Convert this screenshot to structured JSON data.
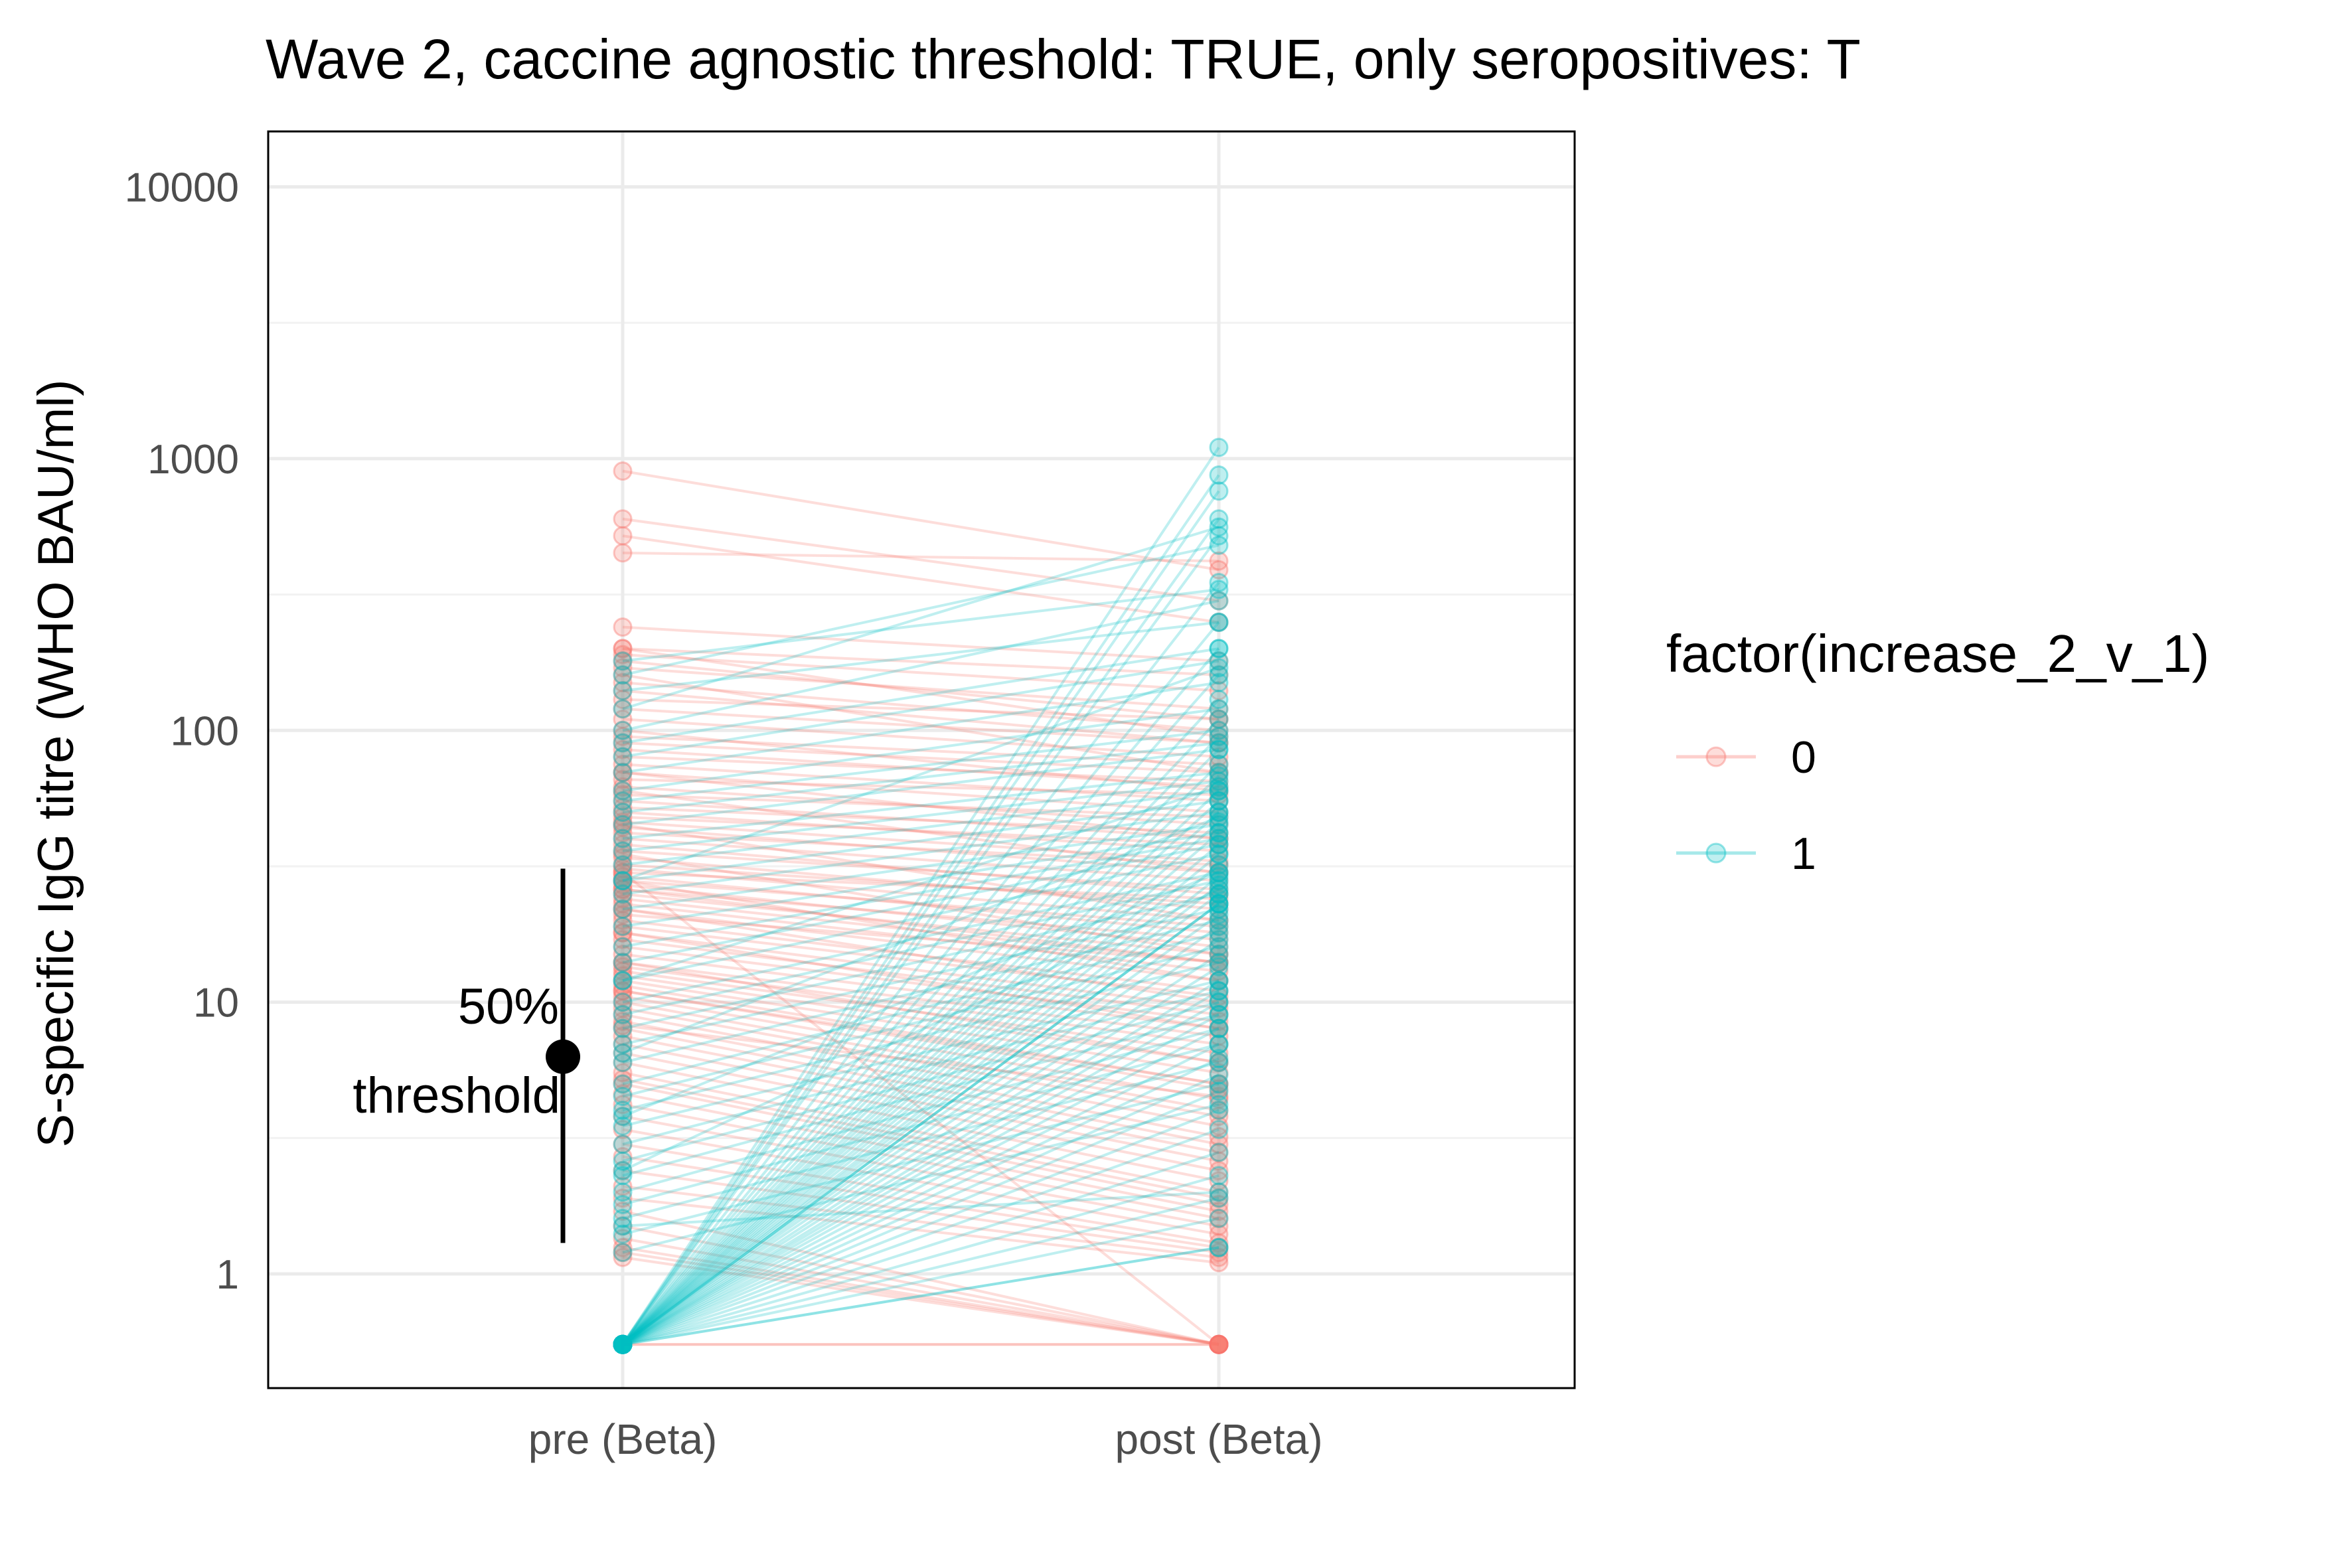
{
  "chart_data": {
    "type": "line",
    "title": "Wave 2, caccine agnostic threshold: TRUE, only seropositives: T",
    "xlabel": "",
    "ylabel": "S-specific IgG titre (WHO BAU/ml)",
    "y_scale": "log10",
    "ylim": [
      0.38,
      16000
    ],
    "categories": [
      "pre (Beta)",
      "post (Beta)"
    ],
    "y_ticks": [
      1,
      10,
      100,
      1000,
      10000
    ],
    "y_tick_labels": [
      "1",
      "10",
      "100",
      "1000",
      "10000"
    ],
    "grid": true,
    "legend": {
      "title": "factor(increase_2_v_1)",
      "position": "right",
      "entries": [
        {
          "label": "0",
          "color": "#F8766D"
        },
        {
          "label": "1",
          "color": "#00BFC4"
        }
      ]
    },
    "threshold_annotation": {
      "text_line1": "50%",
      "text_line2": "threshold",
      "x_category": "pre (Beta)",
      "point": 6.3,
      "lower": 1.3,
      "upper": 31
    },
    "series": [
      {
        "name": "0",
        "color": "#F8766D",
        "pairs": [
          [
            900,
            390
          ],
          [
            600,
            300
          ],
          [
            520,
            250
          ],
          [
            450,
            420
          ],
          [
            240,
            180
          ],
          [
            200,
            160
          ],
          [
            190,
            140
          ],
          [
            170,
            120
          ],
          [
            150,
            100
          ],
          [
            130,
            110
          ],
          [
            120,
            90
          ],
          [
            110,
            80
          ],
          [
            95,
            75
          ],
          [
            90,
            70
          ],
          [
            85,
            62
          ],
          [
            80,
            65
          ],
          [
            75,
            55
          ],
          [
            70,
            50
          ],
          [
            66,
            58
          ],
          [
            62,
            45
          ],
          [
            58,
            48
          ],
          [
            55,
            40
          ],
          [
            52,
            42
          ],
          [
            50,
            36
          ],
          [
            48,
            38
          ],
          [
            46,
            33
          ],
          [
            44,
            30
          ],
          [
            42,
            32
          ],
          [
            40,
            28
          ],
          [
            38,
            25
          ],
          [
            36,
            26
          ],
          [
            34,
            22
          ],
          [
            32,
            23
          ],
          [
            31,
            20
          ],
          [
            30,
            24
          ],
          [
            29,
            18
          ],
          [
            28,
            19
          ],
          [
            27,
            16
          ],
          [
            26,
            17
          ],
          [
            25,
            15
          ],
          [
            24,
            14
          ],
          [
            23,
            13
          ],
          [
            22,
            12
          ],
          [
            21,
            14
          ],
          [
            20,
            11
          ],
          [
            19,
            10.5
          ],
          [
            18,
            9.5
          ],
          [
            17,
            9
          ],
          [
            16,
            8.5
          ],
          [
            15,
            8
          ],
          [
            14,
            7.5
          ],
          [
            13.5,
            7
          ],
          [
            13,
            6.5
          ],
          [
            12.5,
            6
          ],
          [
            12,
            5.5
          ],
          [
            11.5,
            5
          ],
          [
            11,
            4.8
          ],
          [
            10.5,
            4.4
          ],
          [
            10,
            4
          ],
          [
            9.5,
            3.8
          ],
          [
            9,
            3.5
          ],
          [
            8.5,
            3.2
          ],
          [
            8,
            3
          ],
          [
            7.5,
            2.8
          ],
          [
            7,
            2.6
          ],
          [
            6.5,
            2.4
          ],
          [
            6,
            2.2
          ],
          [
            5.5,
            2
          ],
          [
            5.2,
            1.9
          ],
          [
            5,
            1.8
          ],
          [
            4.6,
            1.7
          ],
          [
            4.2,
            1.6
          ],
          [
            3.8,
            1.5
          ],
          [
            3.4,
            1.4
          ],
          [
            3,
            1.3
          ],
          [
            2.7,
            1.25
          ],
          [
            2.4,
            1.2
          ],
          [
            2.1,
            1.15
          ],
          [
            1.9,
            1.1
          ],
          [
            1.7,
            0.55
          ],
          [
            1.5,
            0.55
          ],
          [
            1.35,
            0.55
          ],
          [
            1.25,
            0.55
          ],
          [
            1.2,
            0.55
          ],
          [
            1.15,
            0.55
          ],
          [
            30,
            0.55
          ],
          [
            0.55,
            0.55
          ],
          [
            0.55,
            0.55
          ],
          [
            60,
            30
          ],
          [
            45,
            20
          ],
          [
            35,
            15
          ],
          [
            28,
            12
          ],
          [
            22,
            10
          ],
          [
            18,
            8
          ],
          [
            14,
            6
          ],
          [
            11,
            5
          ],
          [
            100,
            60
          ],
          [
            140,
            90
          ],
          [
            160,
            70
          ],
          [
            180,
            110
          ],
          [
            200,
            95
          ],
          [
            70,
            40
          ],
          [
            26,
            14
          ],
          [
            8.2,
            4.5
          ]
        ]
      },
      {
        "name": "1",
        "color": "#00BFC4",
        "pairs": [
          [
            0.55,
            1100
          ],
          [
            0.55,
            870
          ],
          [
            0.55,
            760
          ],
          [
            0.55,
            600
          ],
          [
            0.55,
            520
          ],
          [
            0.55,
            350
          ],
          [
            0.55,
            250
          ],
          [
            0.55,
            200
          ],
          [
            0.55,
            160
          ],
          [
            0.55,
            130
          ],
          [
            0.55,
            110
          ],
          [
            0.55,
            95
          ],
          [
            0.55,
            85
          ],
          [
            0.55,
            75
          ],
          [
            0.55,
            68
          ],
          [
            0.55,
            60
          ],
          [
            0.55,
            55
          ],
          [
            0.55,
            50
          ],
          [
            0.55,
            46
          ],
          [
            0.55,
            42
          ],
          [
            0.55,
            38
          ],
          [
            0.55,
            35
          ],
          [
            0.55,
            32
          ],
          [
            0.55,
            29
          ],
          [
            0.55,
            27
          ],
          [
            0.55,
            25
          ],
          [
            0.55,
            23
          ],
          [
            0.55,
            21
          ],
          [
            0.55,
            19
          ],
          [
            0.55,
            17
          ],
          [
            0.55,
            15
          ],
          [
            0.55,
            13.5
          ],
          [
            0.55,
            12
          ],
          [
            0.55,
            11
          ],
          [
            0.55,
            10
          ],
          [
            0.55,
            9
          ],
          [
            0.55,
            8
          ],
          [
            0.55,
            7
          ],
          [
            0.55,
            6.2
          ],
          [
            0.55,
            5.4
          ],
          [
            0.55,
            4.7
          ],
          [
            0.55,
            4
          ],
          [
            0.55,
            3.4
          ],
          [
            0.55,
            2.8
          ],
          [
            0.55,
            2.3
          ],
          [
            0.55,
            1.9
          ],
          [
            0.55,
            1.6
          ],
          [
            0.55,
            1.25
          ],
          [
            0.55,
            1.25
          ],
          [
            0.55,
            23
          ],
          [
            0.55,
            23
          ],
          [
            180,
            330
          ],
          [
            160,
            480
          ],
          [
            140,
            250
          ],
          [
            120,
            560
          ],
          [
            100,
            300
          ],
          [
            90,
            200
          ],
          [
            80,
            180
          ],
          [
            70,
            150
          ],
          [
            60,
            120
          ],
          [
            55,
            100
          ],
          [
            50,
            90
          ],
          [
            45,
            85
          ],
          [
            40,
            70
          ],
          [
            36,
            65
          ],
          [
            32,
            60
          ],
          [
            28,
            55
          ],
          [
            25,
            50
          ],
          [
            22,
            45
          ],
          [
            19,
            42
          ],
          [
            16,
            40
          ],
          [
            14,
            38
          ],
          [
            12,
            35
          ],
          [
            10,
            30
          ],
          [
            9,
            28
          ],
          [
            8,
            25
          ],
          [
            7,
            22
          ],
          [
            6,
            20
          ],
          [
            5,
            18
          ],
          [
            4.5,
            16
          ],
          [
            4,
            14
          ],
          [
            3.5,
            12
          ],
          [
            3,
            11
          ],
          [
            2.6,
            10
          ],
          [
            2.3,
            9
          ],
          [
            2,
            8
          ],
          [
            1.8,
            7
          ],
          [
            1.6,
            6
          ],
          [
            1.4,
            5
          ],
          [
            1.2,
            4.2
          ],
          [
            12,
            62
          ],
          [
            28,
            170
          ],
          [
            3.8,
            30
          ],
          [
            2.4,
            26
          ],
          [
            6.5,
            48
          ],
          [
            1.5,
            2
          ]
        ]
      }
    ]
  }
}
